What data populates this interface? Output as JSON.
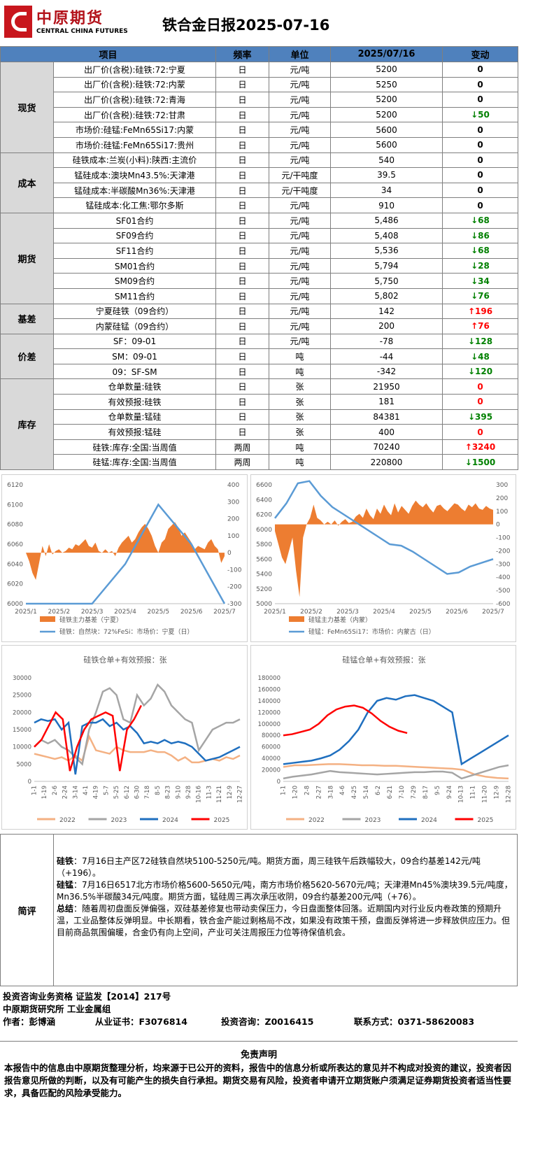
{
  "header": {
    "logo_cn": "中原期货",
    "logo_en": "CENTRAL CHINA FUTURES",
    "title": "铁合金日报2025-07-16"
  },
  "table": {
    "columns": [
      "项目",
      "频率",
      "单位",
      "2025/07/16",
      "变动"
    ],
    "groups": [
      {
        "category": "现货",
        "rows": [
          {
            "item": "出厂价(含税):硅铁:72:宁夏",
            "freq": "日",
            "unit": "元/吨",
            "value": "5200",
            "change": "0",
            "dir": "zero"
          },
          {
            "item": "出厂价(含税):硅铁:72:内蒙",
            "freq": "日",
            "unit": "元/吨",
            "value": "5250",
            "change": "0",
            "dir": "zero"
          },
          {
            "item": "出厂价(含税):硅铁:72:青海",
            "freq": "日",
            "unit": "元/吨",
            "value": "5200",
            "change": "0",
            "dir": "zero"
          },
          {
            "item": "出厂价(含税):硅铁:72:甘肃",
            "freq": "日",
            "unit": "元/吨",
            "value": "5200",
            "change": "↓50",
            "dir": "down"
          },
          {
            "item": "市场价:硅锰:FeMn65Si17:内蒙",
            "freq": "日",
            "unit": "元/吨",
            "value": "5600",
            "change": "0",
            "dir": "zero"
          },
          {
            "item": "市场价:硅锰:FeMn65Si17:贵州",
            "freq": "日",
            "unit": "元/吨",
            "value": "5600",
            "change": "0",
            "dir": "zero"
          }
        ]
      },
      {
        "category": "成本",
        "rows": [
          {
            "item": "硅铁成本:兰炭(小料):陕西:主流价",
            "freq": "日",
            "unit": "元/吨",
            "value": "540",
            "change": "0",
            "dir": "zero"
          },
          {
            "item": "锰硅成本:澳块Mn43.5%:天津港",
            "freq": "日",
            "unit": "元/干吨度",
            "value": "39.5",
            "change": "0",
            "dir": "zero"
          },
          {
            "item": "锰硅成本:半碳酸Mn36%:天津港",
            "freq": "日",
            "unit": "元/干吨度",
            "value": "34",
            "change": "0",
            "dir": "zero"
          },
          {
            "item": "锰硅成本:化工焦:鄂尔多斯",
            "freq": "日",
            "unit": "元/吨",
            "value": "910",
            "change": "0",
            "dir": "zero"
          }
        ]
      },
      {
        "category": "期货",
        "rows": [
          {
            "item": "SF01合约",
            "freq": "日",
            "unit": "元/吨",
            "value": "5,486",
            "change": "↓68",
            "dir": "down"
          },
          {
            "item": "SF09合约",
            "freq": "日",
            "unit": "元/吨",
            "value": "5,408",
            "change": "↓86",
            "dir": "down"
          },
          {
            "item": "SF11合约",
            "freq": "日",
            "unit": "元/吨",
            "value": "5,536",
            "change": "↓68",
            "dir": "down"
          },
          {
            "item": "SM01合约",
            "freq": "日",
            "unit": "元/吨",
            "value": "5,794",
            "change": "↓28",
            "dir": "down"
          },
          {
            "item": "SM09合约",
            "freq": "日",
            "unit": "元/吨",
            "value": "5,750",
            "change": "↓34",
            "dir": "down"
          },
          {
            "item": "SM11合约",
            "freq": "日",
            "unit": "元/吨",
            "value": "5,802",
            "change": "↓76",
            "dir": "down"
          }
        ]
      },
      {
        "category": "基差",
        "rows": [
          {
            "item": "宁夏硅铁（09合约）",
            "freq": "日",
            "unit": "元/吨",
            "value": "142",
            "change": "↑196",
            "dir": "up"
          },
          {
            "item": "内蒙硅锰（09合约）",
            "freq": "日",
            "unit": "元/吨",
            "value": "200",
            "change": "↑76",
            "dir": "up"
          }
        ]
      },
      {
        "category": "价差",
        "rows": [
          {
            "item": "SF：09-01",
            "freq": "日",
            "unit": "元/吨",
            "value": "-78",
            "change": "↓128",
            "dir": "down"
          },
          {
            "item": "SM：09-01",
            "freq": "日",
            "unit": "吨",
            "value": "-44",
            "change": "↓48",
            "dir": "down"
          },
          {
            "item": "09：SF-SM",
            "freq": "日",
            "unit": "吨",
            "value": "-342",
            "change": "↓120",
            "dir": "down"
          }
        ]
      },
      {
        "category": "库存",
        "rows": [
          {
            "item": "仓单数量:硅铁",
            "freq": "日",
            "unit": "张",
            "value": "21950",
            "change": "0",
            "dir": "redz"
          },
          {
            "item": "有效预报:硅铁",
            "freq": "日",
            "unit": "张",
            "value": "181",
            "change": "0",
            "dir": "redz"
          },
          {
            "item": "仓单数量:锰硅",
            "freq": "日",
            "unit": "张",
            "value": "84381",
            "change": "↓395",
            "dir": "down"
          },
          {
            "item": "有效预报:锰硅",
            "freq": "日",
            "unit": "张",
            "value": "400",
            "change": "0",
            "dir": "redz"
          },
          {
            "item": "硅铁:库存:全国:当周值",
            "freq": "两周",
            "unit": "吨",
            "value": "70240",
            "change": "↑3240",
            "dir": "up"
          },
          {
            "item": "硅锰:库存:全国:当周值",
            "freq": "两周",
            "unit": "吨",
            "value": "220800",
            "change": "↓1500",
            "dir": "down"
          }
        ]
      }
    ]
  },
  "chart_data": [
    {
      "type": "line",
      "title": "",
      "x_ticks": [
        "2025/1",
        "2025/2",
        "2025/3",
        "2025/4",
        "2025/5",
        "2025/6",
        "2025/7"
      ],
      "y_left": [
        6000,
        6020,
        6040,
        6060,
        6080,
        6100,
        6120
      ],
      "y_right": [
        -300,
        -200,
        -100,
        0,
        100,
        200,
        300,
        400
      ],
      "series": [
        {
          "name": "硅铁主力基差（宁夏）",
          "kind": "area",
          "axis": "right",
          "color": "#ed7d31",
          "values": [
            0,
            -50,
            -120,
            -160,
            -60,
            40,
            -20,
            50,
            -10,
            10,
            20,
            0,
            10,
            30,
            20,
            50,
            40,
            60,
            80,
            40,
            30,
            60,
            10,
            0,
            20,
            0,
            10,
            -20,
            30,
            60,
            80,
            100,
            60,
            80,
            120,
            150,
            170,
            140,
            100,
            40,
            0,
            60,
            80,
            140,
            160,
            180,
            150,
            100,
            120,
            90,
            60,
            20,
            40,
            30,
            20,
            60,
            80,
            40,
            20,
            -60,
            -20
          ]
        },
        {
          "name": "硅铁：自然块：72%FeSi：市场价：宁夏（日）",
          "kind": "line",
          "axis": "left",
          "color": "#5b9bd5",
          "values": [
            6000,
            6000,
            6000,
            6040,
            6100,
            6060,
            6000
          ]
        }
      ]
    },
    {
      "type": "line",
      "title": "",
      "x_ticks": [
        "2025/1",
        "2025/2",
        "2025/3",
        "2025/4",
        "2025/5",
        "2025/6",
        "2025/7"
      ],
      "y_left": [
        5000,
        5200,
        5400,
        5600,
        5800,
        6000,
        6200,
        6400,
        6600
      ],
      "y_right": [
        -600,
        -500,
        -400,
        -300,
        -200,
        -100,
        0,
        100,
        200,
        300
      ],
      "series": [
        {
          "name": "硅锰主力基差（内蒙）",
          "kind": "area",
          "axis": "right",
          "color": "#ed7d31",
          "values": [
            -50,
            -150,
            -250,
            -300,
            -200,
            -100,
            -350,
            -550,
            -100,
            0,
            50,
            150,
            50,
            30,
            0,
            20,
            0,
            30,
            -10,
            20,
            40,
            10,
            20,
            60,
            80,
            50,
            120,
            70,
            40,
            120,
            80,
            150,
            100,
            70,
            160,
            90,
            140,
            110,
            80,
            140,
            180,
            150,
            130,
            160,
            120,
            90,
            140,
            150,
            120,
            100,
            130,
            160,
            150,
            120,
            100,
            150,
            130,
            160,
            120,
            110,
            140,
            120,
            110
          ]
        },
        {
          "name": "硅锰：FeMn65Si17：市场价：内蒙古（日）",
          "kind": "line",
          "axis": "left",
          "color": "#5b9bd5",
          "values": [
            6150,
            6350,
            6620,
            6650,
            6450,
            6300,
            6200,
            6100,
            6000,
            5900,
            5800,
            5780,
            5700,
            5600,
            5500,
            5400,
            5420,
            5500,
            5550,
            5600
          ]
        }
      ]
    },
    {
      "type": "line",
      "title": "硅铁仓单+有效预报：张",
      "x_ticks": [
        "1-1",
        "1-19",
        "2-6",
        "2-24",
        "3-14",
        "4-1",
        "4-19",
        "5-7",
        "5-25",
        "6-12",
        "6-30",
        "7-18",
        "8-5",
        "8-23",
        "9-10",
        "9-28",
        "10-16",
        "11-3",
        "11-21",
        "12-9",
        "12-27"
      ],
      "ylim": [
        0,
        30000
      ],
      "y_ticks": [
        0,
        5000,
        10000,
        15000,
        20000,
        25000,
        30000
      ],
      "series": [
        {
          "name": "2022",
          "color": "#f4b183",
          "values": [
            8000,
            7500,
            7000,
            6500,
            7000,
            6000,
            7500,
            6000,
            13000,
            9000,
            8500,
            8000,
            10000,
            9000,
            8500,
            8500,
            8500,
            9000,
            8500,
            8500,
            7500,
            6000,
            7000,
            5500,
            5500,
            6000,
            6500,
            6000,
            7000,
            6500,
            7500
          ]
        },
        {
          "name": "2023",
          "color": "#a5a5a5",
          "values": [
            10000,
            12000,
            11000,
            12000,
            10000,
            9000,
            7000,
            5000,
            15000,
            20000,
            26000,
            27000,
            25000,
            18000,
            17000,
            25000,
            22000,
            24000,
            28000,
            26000,
            22000,
            20000,
            18000,
            17000,
            9000,
            12000,
            15000,
            16000,
            17000,
            17000,
            18000
          ]
        },
        {
          "name": "2024",
          "color": "#1f6fbf",
          "values": [
            17000,
            18000,
            17500,
            18000,
            15000,
            17000,
            2000,
            16000,
            17000,
            17000,
            18000,
            16000,
            17000,
            15000,
            16000,
            14000,
            11000,
            11500,
            11000,
            12000,
            11000,
            11500,
            11000,
            10000,
            8000,
            6000,
            6500,
            7000,
            8000,
            9000,
            10000
          ]
        },
        {
          "name": "2025",
          "color": "#ff0000",
          "values": [
            10000,
            12000,
            16000,
            20000,
            18000,
            3000,
            10000,
            15000,
            18000,
            19000,
            20000,
            19000,
            3000,
            15000,
            18000,
            22000
          ]
        }
      ]
    },
    {
      "type": "line",
      "title": "硅锰仓单+有效预报：张",
      "x_ticks": [
        "1-1",
        "1-20",
        "2-8",
        "2-27",
        "3-18",
        "4-6",
        "4-25",
        "5-14",
        "6-2",
        "6-21",
        "7-10",
        "7-29",
        "8-17",
        "9-5",
        "9-24",
        "10-13",
        "11-1",
        "11-20",
        "12-9",
        "12-28"
      ],
      "ylim": [
        0,
        180000
      ],
      "y_ticks": [
        0,
        20000,
        40000,
        60000,
        80000,
        100000,
        120000,
        140000,
        160000,
        180000
      ],
      "series": [
        {
          "name": "2022",
          "color": "#f4b183",
          "values": [
            25000,
            28000,
            28000,
            29000,
            30000,
            30000,
            29000,
            28000,
            28000,
            27000,
            27000,
            26000,
            25000,
            24000,
            23000,
            22000,
            20000,
            12000,
            8000,
            6000,
            5000
          ]
        },
        {
          "name": "2023",
          "color": "#a5a5a5",
          "values": [
            5000,
            8000,
            10000,
            12000,
            15000,
            18000,
            16000,
            15000,
            14000,
            13000,
            12000,
            13000,
            14000,
            15000,
            16000,
            16000,
            17000,
            17000,
            15000,
            5000,
            10000,
            15000,
            20000,
            25000,
            28000
          ]
        },
        {
          "name": "2024",
          "color": "#1f6fbf",
          "values": [
            30000,
            32000,
            34000,
            36000,
            40000,
            45000,
            55000,
            70000,
            90000,
            120000,
            140000,
            145000,
            142000,
            148000,
            150000,
            145000,
            140000,
            130000,
            120000,
            30000,
            40000,
            50000,
            60000,
            70000,
            80000
          ]
        },
        {
          "name": "2025",
          "color": "#ff0000",
          "values": [
            80000,
            82000,
            86000,
            90000,
            100000,
            115000,
            125000,
            130000,
            132000,
            128000,
            118000,
            105000,
            95000,
            88000,
            84000
          ]
        }
      ]
    }
  ],
  "comment": {
    "label": "简评",
    "paragraphs": [
      {
        "head": "硅铁",
        "body": "：7月16日主产区72硅铁自然块5100-5250元/吨。期货方面，周三硅铁午后跌幅较大，09合约基差142元/吨（+196）。"
      },
      {
        "head": "硅锰",
        "body": "：7月16日6517北方市场价格5600-5650元/吨，南方市场价格5620-5670元/吨；天津港Mn45%澳块39.5元/吨度，Mn36.5%半碳酸34元/吨度。期货方面，锰硅周三再次承压收阴，09合约基差200元/吨（+76）。"
      },
      {
        "head": "总结",
        "body": "：随着周初盘面反弹偏强，双硅基差修复也带动卖保压力，今日盘面整体回落。近期国内对行业反内卷政策的预期升温，工业品整体反弹明显。中长期看，铁合金产能过剩格局不改，如果没有政策干预，盘面反弹将进一步释放供应压力。但目前商品氛围偏暖，合金仍有向上空间，产业可关注周报压力位等待保值机会。"
      }
    ]
  },
  "footer": {
    "line1": "投资咨询业务资格   证监发【2014】217号",
    "line2": "中原期货研究所    工业金属组",
    "line3_author": "作者：彭博涵",
    "line3_cert": "从业证书：F3076814",
    "line3_consult": "投资咨询：Z0016415",
    "line3_contact": "联系方式：0371-58620083"
  },
  "disclaimer": {
    "title": "免责声明",
    "body": "本报告中的信息由中原期货整理分析，均来源于已公开的资料，报告中的信息分析或所表达的意见并不构成对投资的建议，投资者因报告意见所做的判断，以及有可能产生的损失自行承担。期货交易有风险，投资者申请开立期货账户须满足证券期货投资者适当性要求，具备匹配的风险承受能力。"
  }
}
